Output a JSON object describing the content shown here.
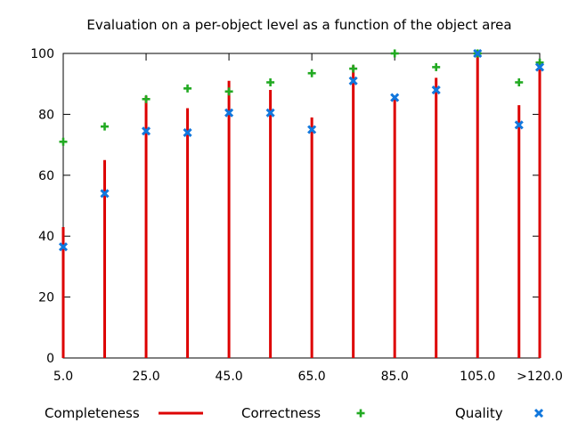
{
  "chart_data": {
    "type": "bar",
    "title": "Evaluation on a per-object level as a function of the object area",
    "xlabel": "",
    "ylabel": "",
    "ylim": [
      0,
      100
    ],
    "xlim": [
      5,
      120
    ],
    "x": [
      5,
      15,
      25,
      35,
      45,
      55,
      65,
      75,
      85,
      95,
      105,
      115,
      120
    ],
    "x_tick_values": [
      5,
      25,
      45,
      65,
      85,
      105,
      120
    ],
    "x_tick_labels": [
      "5.0",
      "25.0",
      "45.0",
      "65.0",
      "85.0",
      "105.0",
      ">120.0"
    ],
    "y_ticks": [
      0,
      20,
      40,
      60,
      80,
      100
    ],
    "grid": false,
    "legend_position": "bottom",
    "series": [
      {
        "name": "Completeness",
        "style": "impulse",
        "color": "#dd0000",
        "values": [
          43,
          65,
          86,
          82,
          91,
          88,
          79,
          96,
          86,
          92,
          100,
          83,
          96
        ]
      },
      {
        "name": "Correctness",
        "style": "plus",
        "color": "#22aa22",
        "values": [
          71,
          76,
          85,
          88.5,
          87.5,
          90.5,
          93.5,
          95,
          100,
          95.5,
          100,
          90.5,
          97
        ]
      },
      {
        "name": "Quality",
        "style": "cross",
        "color": "#1177dd",
        "values": [
          36.5,
          54,
          74.5,
          74,
          80.5,
          80.5,
          75,
          91,
          85.5,
          88,
          100,
          76.5,
          95.5
        ]
      }
    ]
  }
}
